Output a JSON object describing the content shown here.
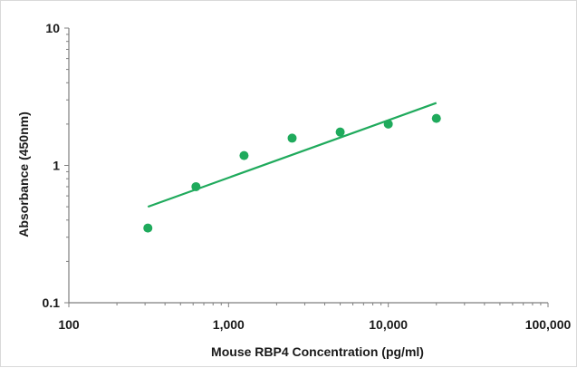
{
  "chart_data": {
    "type": "scatter",
    "xlabel": "Mouse RBP4 Concentration (pg/ml)",
    "ylabel": "Absorbance (450nm)",
    "xscale": "log",
    "yscale": "log",
    "xlim": [
      100,
      100000
    ],
    "ylim": [
      0.1,
      10
    ],
    "xticks": [
      {
        "value": 100,
        "label": "100"
      },
      {
        "value": 1000,
        "label": "1,000"
      },
      {
        "value": 10000,
        "label": "10,000"
      },
      {
        "value": 100000,
        "label": "100,000"
      }
    ],
    "yticks": [
      {
        "value": 0.1,
        "label": "0.1"
      },
      {
        "value": 1,
        "label": "1"
      },
      {
        "value": 10,
        "label": "10"
      }
    ],
    "grid": false,
    "legend": "none",
    "series": [
      {
        "type": "scatter",
        "color": "#1faa5c",
        "points": [
          {
            "x": 312.5,
            "y": 0.35
          },
          {
            "x": 625,
            "y": 0.7
          },
          {
            "x": 1250,
            "y": 1.18
          },
          {
            "x": 2500,
            "y": 1.58
          },
          {
            "x": 5000,
            "y": 1.75
          },
          {
            "x": 10000,
            "y": 2.0
          },
          {
            "x": 20000,
            "y": 2.2
          }
        ]
      },
      {
        "type": "trendline",
        "color": "#1faa5c",
        "points": [
          {
            "x": 312.5,
            "y": 0.5
          },
          {
            "x": 20000,
            "y": 2.85
          }
        ]
      }
    ]
  }
}
